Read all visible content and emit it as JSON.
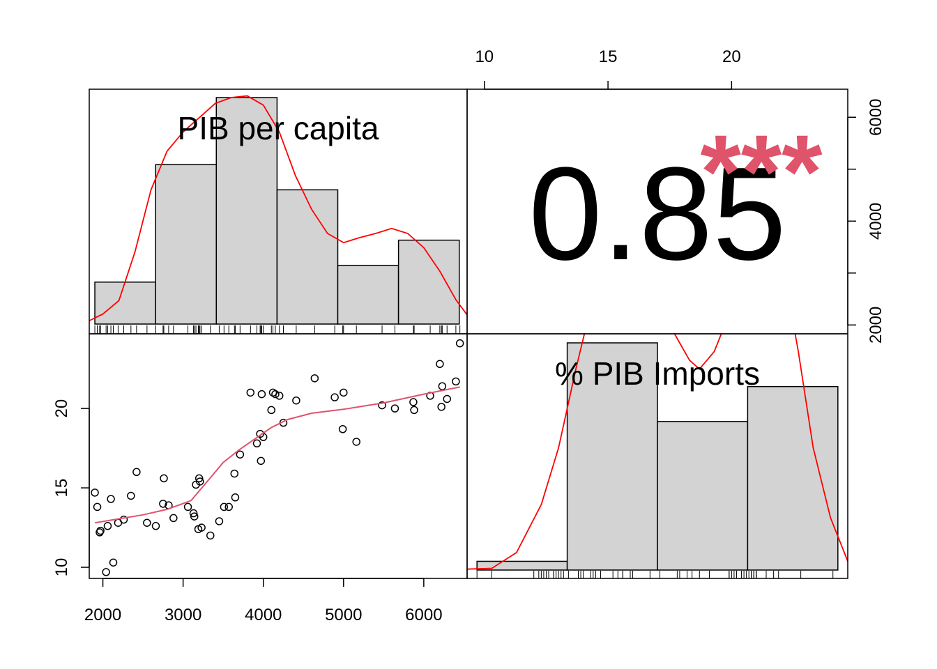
{
  "chart_data": {
    "type": "scatter",
    "variables": [
      "PIB per capita",
      "% PIB Imports"
    ],
    "correlation": {
      "value": "0.85",
      "stars": "***"
    },
    "axes": {
      "x_bottom_ticks": [
        "2000",
        "3000",
        "4000",
        "5000",
        "6000"
      ],
      "x_top_ticks": [
        "10",
        "15",
        "20"
      ],
      "y_left_ticks": [
        "10",
        "15",
        "20"
      ],
      "y_right_ticks": [
        "2000",
        "4000",
        "6000"
      ],
      "pib_range": [
        1830,
        6540
      ],
      "imports_range": [
        9.3,
        24.7
      ]
    },
    "histograms": {
      "pib": {
        "breaks": [
          1900,
          2657,
          3414,
          4171,
          4928,
          5685,
          6442
        ],
        "counts": [
          5,
          19,
          27,
          16,
          7,
          10
        ]
      },
      "imports": {
        "breaks": [
          9.7,
          13.35,
          17.0,
          20.65,
          24.3
        ],
        "counts": [
          1,
          26,
          17,
          21
        ]
      }
    },
    "scatter": {
      "points": [
        [
          1900,
          14.7
        ],
        [
          1930,
          13.8
        ],
        [
          1960,
          12.2
        ],
        [
          1970,
          12.3
        ],
        [
          2040,
          9.7
        ],
        [
          2060,
          12.6
        ],
        [
          2100,
          14.3
        ],
        [
          2130,
          10.3
        ],
        [
          2190,
          12.8
        ],
        [
          2260,
          13.0
        ],
        [
          2350,
          14.5
        ],
        [
          2420,
          16.0
        ],
        [
          2550,
          12.8
        ],
        [
          2660,
          12.6
        ],
        [
          2750,
          14.0
        ],
        [
          2760,
          15.6
        ],
        [
          2820,
          13.9
        ],
        [
          2880,
          13.1
        ],
        [
          3060,
          13.8
        ],
        [
          3130,
          13.4
        ],
        [
          3140,
          13.2
        ],
        [
          3160,
          15.2
        ],
        [
          3190,
          12.4
        ],
        [
          3200,
          15.6
        ],
        [
          3210,
          15.4
        ],
        [
          3230,
          12.5
        ],
        [
          3340,
          12.0
        ],
        [
          3450,
          12.9
        ],
        [
          3510,
          13.8
        ],
        [
          3570,
          13.8
        ],
        [
          3640,
          15.9
        ],
        [
          3650,
          14.4
        ],
        [
          3710,
          17.1
        ],
        [
          3840,
          21.0
        ],
        [
          3920,
          17.8
        ],
        [
          3960,
          18.4
        ],
        [
          3970,
          16.7
        ],
        [
          3980,
          20.9
        ],
        [
          4000,
          18.2
        ],
        [
          4100,
          19.9
        ],
        [
          4120,
          21.0
        ],
        [
          4150,
          20.9
        ],
        [
          4200,
          20.8
        ],
        [
          4250,
          19.1
        ],
        [
          4410,
          20.5
        ],
        [
          4640,
          21.9
        ],
        [
          4890,
          20.7
        ],
        [
          4990,
          18.7
        ],
        [
          5000,
          21.0
        ],
        [
          5160,
          17.9
        ],
        [
          5480,
          20.2
        ],
        [
          5640,
          20.0
        ],
        [
          5870,
          20.4
        ],
        [
          5880,
          19.9
        ],
        [
          6080,
          20.8
        ],
        [
          6200,
          22.8
        ],
        [
          6220,
          20.1
        ],
        [
          6230,
          21.4
        ],
        [
          6290,
          20.6
        ],
        [
          6400,
          21.7
        ],
        [
          6450,
          24.1
        ]
      ],
      "smooth": [
        [
          1900,
          12.8
        ],
        [
          2200,
          13.05
        ],
        [
          2500,
          13.3
        ],
        [
          2800,
          13.65
        ],
        [
          3100,
          14.2
        ],
        [
          3300,
          15.4
        ],
        [
          3500,
          16.6
        ],
        [
          3700,
          17.4
        ],
        [
          3900,
          18.1
        ],
        [
          4100,
          18.8
        ],
        [
          4300,
          19.3
        ],
        [
          4600,
          19.7
        ],
        [
          5000,
          19.95
        ],
        [
          5500,
          20.35
        ],
        [
          6000,
          20.9
        ],
        [
          6450,
          21.35
        ]
      ]
    },
    "density": {
      "pib": [
        [
          1830,
          0.4
        ],
        [
          2000,
          1.2
        ],
        [
          2200,
          2.8
        ],
        [
          2400,
          8.6
        ],
        [
          2600,
          16.0
        ],
        [
          2800,
          20.6
        ],
        [
          3000,
          22.9
        ],
        [
          3200,
          24.6
        ],
        [
          3400,
          26.3
        ],
        [
          3600,
          27.0
        ],
        [
          3800,
          27.2
        ],
        [
          4000,
          26.1
        ],
        [
          4200,
          22.9
        ],
        [
          4400,
          17.7
        ],
        [
          4600,
          13.7
        ],
        [
          4800,
          10.8
        ],
        [
          5000,
          9.7
        ],
        [
          5200,
          10.3
        ],
        [
          5400,
          10.8
        ],
        [
          5600,
          11.4
        ],
        [
          5800,
          10.8
        ],
        [
          6000,
          9.1
        ],
        [
          6200,
          6.3
        ],
        [
          6400,
          2.9
        ],
        [
          6540,
          1.1
        ]
      ],
      "imports": [
        [
          9.3,
          0.1
        ],
        [
          10.3,
          0.2
        ],
        [
          11.3,
          2.0
        ],
        [
          12.3,
          7.5
        ],
        [
          13.0,
          14.0
        ],
        [
          13.7,
          23.0
        ],
        [
          14.3,
          30.0
        ],
        [
          15.0,
          36.0
        ],
        [
          15.7,
          40.0
        ],
        [
          16.3,
          38.0
        ],
        [
          17.0,
          32.0
        ],
        [
          17.7,
          27.0
        ],
        [
          18.3,
          24.0
        ],
        [
          18.7,
          23.0
        ],
        [
          19.3,
          25.0
        ],
        [
          20.0,
          30.0
        ],
        [
          20.7,
          38.0
        ],
        [
          21.3,
          40.0
        ],
        [
          22.0,
          36.0
        ],
        [
          22.7,
          25.0
        ],
        [
          23.3,
          14.0
        ],
        [
          24.0,
          6.0
        ],
        [
          24.7,
          1.0
        ]
      ]
    },
    "colors": {
      "bars": "#D3D3D3",
      "density": "#FF0000",
      "smooth": "#DF536B",
      "stars": "#DF536B"
    }
  }
}
